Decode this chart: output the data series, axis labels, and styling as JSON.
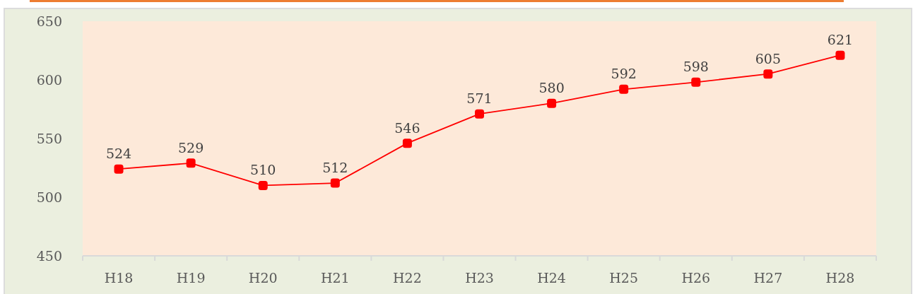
{
  "chart_data": {
    "type": "line",
    "categories": [
      "H18",
      "H19",
      "H20",
      "H21",
      "H22",
      "H23",
      "H24",
      "H25",
      "H26",
      "H27",
      "H28"
    ],
    "values": [
      524,
      529,
      510,
      512,
      546,
      571,
      580,
      592,
      598,
      605,
      621
    ],
    "color": "#ff0000",
    "ylim": [
      450,
      650
    ],
    "yticks": [
      450,
      500,
      550,
      600,
      650
    ],
    "marker": "square",
    "line_style": "solid",
    "data_labels": true
  }
}
